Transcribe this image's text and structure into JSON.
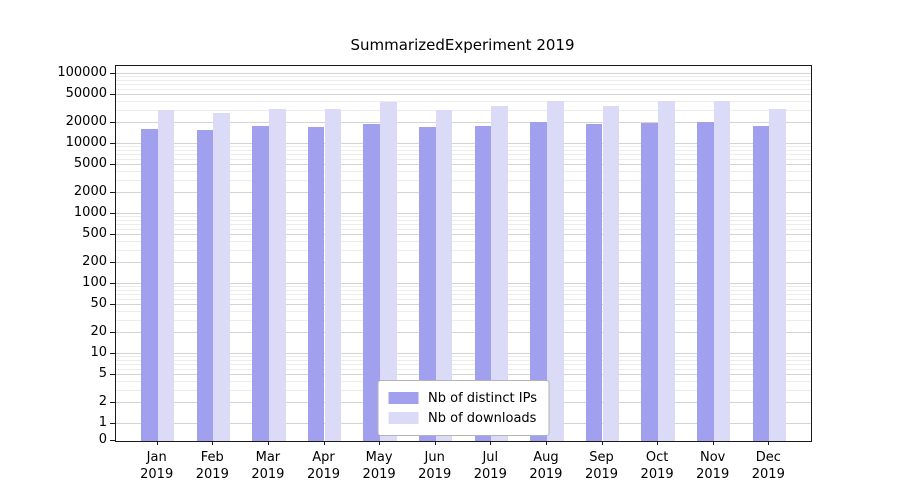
{
  "title": "SummarizedExperiment 2019",
  "chart_data": {
    "type": "bar",
    "title": "SummarizedExperiment 2019",
    "categories": [
      "Jan 2019",
      "Feb 2019",
      "Mar 2019",
      "Apr 2019",
      "May 2019",
      "Jun 2019",
      "Jul 2019",
      "Aug 2019",
      "Sep 2019",
      "Oct 2019",
      "Nov 2019",
      "Dec 2019"
    ],
    "series": [
      {
        "name": "Nb of distinct IPs",
        "color": "#a0a0ee",
        "values": [
          16500,
          16000,
          17800,
          17400,
          19300,
          17600,
          17900,
          20300,
          19400,
          19900,
          20400,
          17800
        ]
      },
      {
        "name": "Nb of downloads",
        "color": "#dbdbf8",
        "values": [
          30500,
          27500,
          32000,
          31500,
          40000,
          31000,
          34500,
          40500,
          35000,
          41000,
          41000,
          32000
        ]
      }
    ],
    "yscale": "log",
    "yticks": [
      0,
      1,
      2,
      5,
      10,
      20,
      50,
      100,
      200,
      500,
      1000,
      2000,
      5000,
      10000,
      20000,
      50000,
      100000
    ],
    "ylim": [
      0,
      130000
    ],
    "xlabel": "",
    "ylabel": "",
    "grid": "horizontal",
    "legend_position": "lower center"
  }
}
